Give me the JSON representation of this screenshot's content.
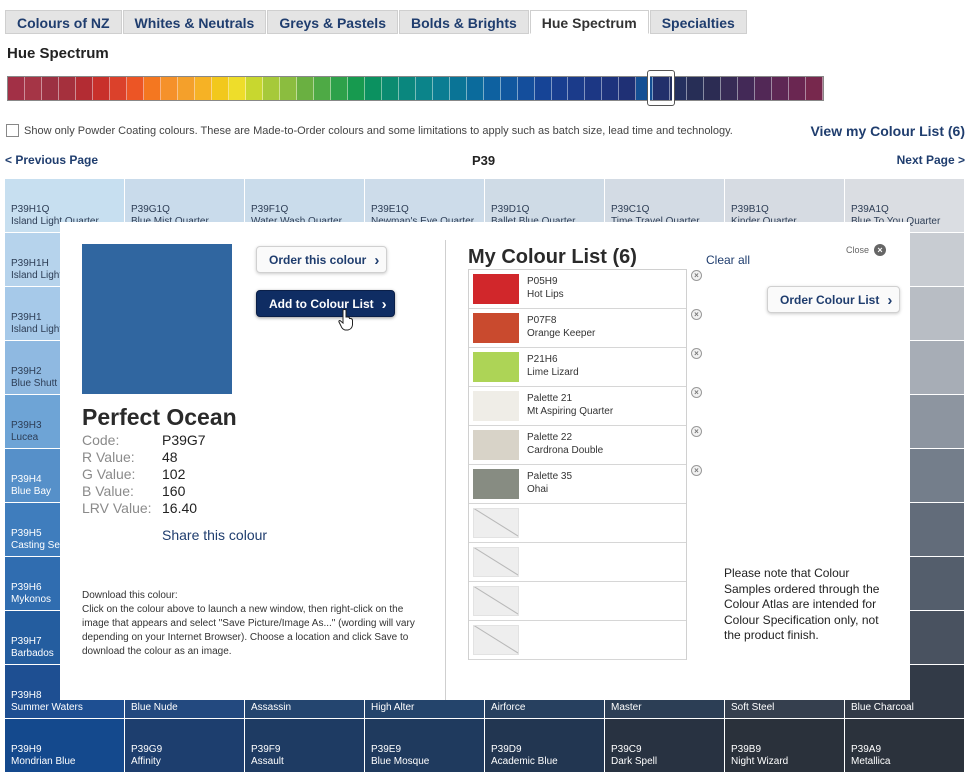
{
  "tabs": [
    {
      "label": "Colours of NZ",
      "active": false
    },
    {
      "label": "Whites & Neutrals",
      "active": false
    },
    {
      "label": "Greys & Pastels",
      "active": false
    },
    {
      "label": "Bolds & Brights",
      "active": false
    },
    {
      "label": "Hue Spectrum",
      "active": true
    },
    {
      "label": "Specialties",
      "active": false
    }
  ],
  "page_title": "Hue Spectrum",
  "spectrum": {
    "selected_index": 37,
    "colors": [
      "#a23046",
      "#a53546",
      "#9c3142",
      "#a5303d",
      "#b32c33",
      "#c8302b",
      "#db412b",
      "#ec5525",
      "#f47720",
      "#f5912a",
      "#f4a02b",
      "#f6b225",
      "#f2c81d",
      "#eedd2a",
      "#c8d72f",
      "#a6c93a",
      "#8bbd3f",
      "#6ab041",
      "#4eaa45",
      "#2ea14a",
      "#179a4f",
      "#0b9160",
      "#0a8b70",
      "#0a877e",
      "#0b848a",
      "#0b7d92",
      "#0a7496",
      "#0b6b9c",
      "#0e61a0",
      "#11579f",
      "#144e9c",
      "#164496",
      "#193e90",
      "#1b3b8a",
      "#1c3784",
      "#1d337d",
      "#1f3075",
      "#144f94",
      "#22306b",
      "#24305f",
      "#272e56",
      "#2c2c53",
      "#372b56",
      "#432957",
      "#522856",
      "#5e2754",
      "#6a2651",
      "#77284d"
    ]
  },
  "powder_coating_label": "Show only Powder Coating colours. These are Made-to-Order colours and some limitations to apply such as batch size, lead time and technology.",
  "view_list_label": "View my Colour List (6)",
  "pagination": {
    "prev": "< Previous Page",
    "page": "P39",
    "next": "Next Page >"
  },
  "grid": {
    "columns": [
      [
        "P39H1Q",
        "Island Light Quarter",
        "#c7dff0"
      ],
      [
        "P39G1Q",
        "Blue Mist Quarter",
        "#c9dbeb"
      ],
      [
        "P39F1Q",
        "Water Wash Quarter",
        "#cadceb"
      ],
      [
        "P39E1Q",
        "Newman's Eye Quarter",
        "#cddcea"
      ],
      [
        "P39D1Q",
        "Ballet Blue Quarter",
        "#cfdbe6"
      ],
      [
        "P39C1Q",
        "Time Travel Quarter",
        "#d3dbe4"
      ],
      [
        "P39B1Q",
        "Kinder Quarter",
        "#d6dbe2"
      ],
      [
        "P39A1Q",
        "Blue To You Quarter",
        "#dadde2"
      ]
    ],
    "left_column": [
      {
        "line1": "P39H1H",
        "line2": "Island Light",
        "color": "#b6d3ec"
      },
      {
        "line1": "P39H1",
        "line2": "Island Light",
        "color": "#a6c9e9"
      },
      {
        "line1": "P39H2",
        "line2": "Blue Shutt",
        "color": "#8fb9e1"
      },
      {
        "line1": "P39H3",
        "line2": "Lucea",
        "color": "#6ea4d6"
      },
      {
        "line1": "P39H4",
        "line2": "Blue Bay",
        "color": "#5690c9"
      },
      {
        "line1": "P39H5",
        "line2": "Casting Se",
        "color": "#3f7dbd"
      },
      {
        "line1": "P39H6",
        "line2": "Mykonos",
        "color": "#306db0"
      },
      {
        "line1": "P39H7",
        "line2": "Barbados",
        "color": "#245d9f"
      }
    ],
    "right_column": [
      {
        "line1": "",
        "line2": "Half",
        "color": "#c8ccd2"
      },
      {
        "line1": "",
        "line2": "",
        "color": "#b8bdc4"
      },
      {
        "line1": "",
        "line2": "",
        "color": "#a7adb6"
      },
      {
        "line1": "",
        "line2": "d",
        "color": "#8d95a0"
      },
      {
        "line1": "",
        "line2": "",
        "color": "#747e8b"
      },
      {
        "line1": "",
        "line2": "",
        "color": "#626c7a"
      },
      {
        "line1": "",
        "line2": "",
        "color": "#545e6c"
      },
      {
        "line1": "",
        "line2": "",
        "color": "#495260"
      }
    ],
    "row9": [
      {
        "line1": "P39H8",
        "line2": "Summer Waters",
        "color": "#1e4f92"
      },
      {
        "line1": "",
        "line2": "Blue Nude",
        "color": "#23497f"
      },
      {
        "line1": "",
        "line2": "Assassin",
        "color": "#24456f"
      },
      {
        "line1": "",
        "line2": "High Alter",
        "color": "#24446b"
      },
      {
        "line1": "",
        "line2": "Airforce",
        "color": "#27405f"
      },
      {
        "line1": "",
        "line2": "Master",
        "color": "#2c3e55"
      },
      {
        "line1": "",
        "line2": "Soft Steel",
        "color": "#353f4e"
      },
      {
        "line1": "",
        "line2": "Blue Charcoal",
        "color": "#323a47"
      }
    ],
    "row10": [
      {
        "line1": "P39H9",
        "line2": "Mondrian Blue",
        "color": "#14498d"
      },
      {
        "line1": "P39G9",
        "line2": "Affinity",
        "color": "#1d3e6e"
      },
      {
        "line1": "P39F9",
        "line2": "Assault",
        "color": "#1e3b63"
      },
      {
        "line1": "P39E9",
        "line2": "Blue Mosque",
        "color": "#1f3a5e"
      },
      {
        "line1": "P39D9",
        "line2": "Academic Blue",
        "color": "#223651"
      },
      {
        "line1": "P39C9",
        "line2": "Dark Spell",
        "color": "#283241"
      },
      {
        "line1": "P39B9",
        "line2": "Night Wizard",
        "color": "#2a313b"
      },
      {
        "line1": "P39A9",
        "line2": "Metallica",
        "color": "#2b323c"
      }
    ]
  },
  "detail": {
    "swatch_color": "#3066a0",
    "order_label": "Order this colour",
    "add_label": "Add to Colour List",
    "name": "Perfect Ocean",
    "specs": [
      {
        "label": "Code:",
        "value": "P39G7"
      },
      {
        "label": "R Value:",
        "value": "48"
      },
      {
        "label": "G Value:",
        "value": "102"
      },
      {
        "label": "B Value:",
        "value": "160"
      },
      {
        "label": "LRV Value:",
        "value": "16.40"
      }
    ],
    "share_label": "Share this colour",
    "download_title": "Download this colour:",
    "download_text": "Click on the colour above to launch a new window, then right-click on the image that appears and select \"Save Picture/Image As...\" (wording will vary depending on your Internet Browser). Choose a location and click Save to download the colour as an image."
  },
  "colour_list": {
    "title": "My Colour List (6)",
    "clear_label": "Clear all",
    "close_label": "Close",
    "order_label": "Order Colour List",
    "items": [
      {
        "code": "P05H9",
        "name": "Hot Lips",
        "color": "#d1272b"
      },
      {
        "code": "P07F8",
        "name": "Orange Keeper",
        "color": "#c94a2e"
      },
      {
        "code": "P21H6",
        "name": "Lime Lizard",
        "color": "#add456"
      },
      {
        "code": "Palette 21",
        "name": "Mt Aspiring Quarter",
        "color": "#efede7"
      },
      {
        "code": "Palette 22",
        "name": "Cardrona Double",
        "color": "#d8d3c8"
      },
      {
        "code": "Palette 35",
        "name": "Ohai",
        "color": "#878c82"
      }
    ],
    "empty_slots": 4,
    "note": "Please note that Colour Samples ordered through the Colour Atlas are intended for Colour Specification only, not the product finish."
  }
}
